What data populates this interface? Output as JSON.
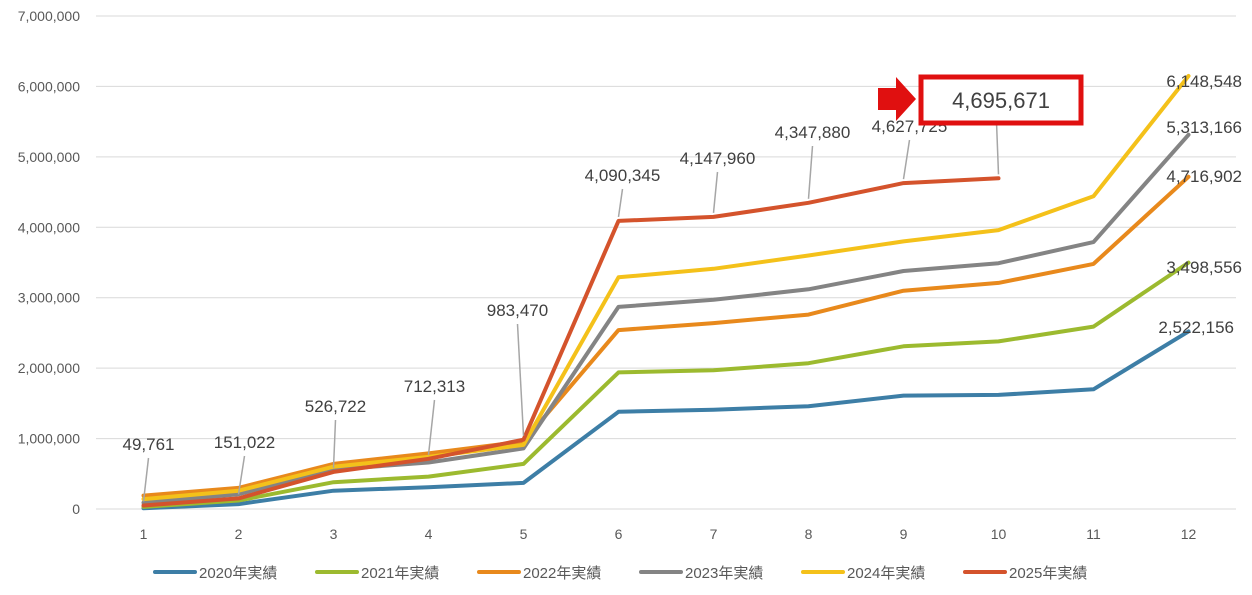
{
  "chart_data": {
    "type": "line",
    "title": "",
    "xlabel": "",
    "ylabel": "",
    "ylim": [
      0,
      7000000
    ],
    "y_ticks": [
      0,
      1000000,
      2000000,
      3000000,
      4000000,
      5000000,
      6000000,
      7000000
    ],
    "y_tick_labels": [
      "0",
      "1,000,000",
      "2,000,000",
      "3,000,000",
      "4,000,000",
      "5,000,000",
      "6,000,000",
      "7,000,000"
    ],
    "categories": [
      "1",
      "2",
      "3",
      "4",
      "5",
      "6",
      "7",
      "8",
      "9",
      "10",
      "11",
      "12"
    ],
    "grid": true,
    "legend_position": "bottom",
    "series": [
      {
        "name": "2020年実績",
        "color": "#3d7ea6",
        "values": [
          10000,
          70000,
          260000,
          310000,
          370000,
          1380000,
          1410000,
          1460000,
          1610000,
          1620000,
          1700000,
          2522156
        ]
      },
      {
        "name": "2021年実績",
        "color": "#9cba2f",
        "values": [
          30000,
          120000,
          380000,
          460000,
          640000,
          1940000,
          1970000,
          2070000,
          2310000,
          2380000,
          2590000,
          3498556
        ]
      },
      {
        "name": "2022年実績",
        "color": "#e8891c",
        "values": [
          190000,
          300000,
          640000,
          790000,
          960000,
          2540000,
          2640000,
          2760000,
          3100000,
          3210000,
          3480000,
          4716902
        ]
      },
      {
        "name": "2023年実績",
        "color": "#848484",
        "values": [
          90000,
          210000,
          560000,
          660000,
          860000,
          2870000,
          2970000,
          3120000,
          3380000,
          3490000,
          3790000,
          5313166
        ]
      },
      {
        "name": "2024年実績",
        "color": "#f4c11a",
        "values": [
          140000,
          260000,
          600000,
          740000,
          910000,
          3290000,
          3410000,
          3600000,
          3800000,
          3960000,
          4440000,
          6148548
        ]
      },
      {
        "name": "2025年実績",
        "color": "#d4532c",
        "values": [
          49761,
          151022,
          526722,
          712313,
          983470,
          4090345,
          4147960,
          4347880,
          4627725,
          4695671,
          null,
          null
        ]
      }
    ],
    "annotations": [
      {
        "series": "2025年実績",
        "index": 0,
        "text": "49,761"
      },
      {
        "series": "2025年実績",
        "index": 1,
        "text": "151,022"
      },
      {
        "series": "2025年実績",
        "index": 2,
        "text": "526,722"
      },
      {
        "series": "2025年実績",
        "index": 3,
        "text": "712,313"
      },
      {
        "series": "2025年実績",
        "index": 4,
        "text": "983,470"
      },
      {
        "series": "2025年実績",
        "index": 5,
        "text": "4,090,345"
      },
      {
        "series": "2025年実績",
        "index": 6,
        "text": "4,147,960"
      },
      {
        "series": "2025年実績",
        "index": 7,
        "text": "4,347,880"
      },
      {
        "series": "2025年実績",
        "index": 8,
        "text": "4,627,725"
      },
      {
        "series": "2024年実績",
        "index": 11,
        "text": "6,148,548"
      },
      {
        "series": "2023年実績",
        "index": 11,
        "text": "5,313,166"
      },
      {
        "series": "2022年実績",
        "index": 11,
        "text": "4,716,902"
      },
      {
        "series": "2021年実績",
        "index": 11,
        "text": "3,498,556"
      },
      {
        "series": "2020年実績",
        "index": 11,
        "text": "2,522,156"
      }
    ],
    "callout": {
      "series": "2025年実績",
      "index": 9,
      "text": "4,695,671",
      "box_color": "#e01010",
      "arrow_color": "#e01010"
    }
  }
}
